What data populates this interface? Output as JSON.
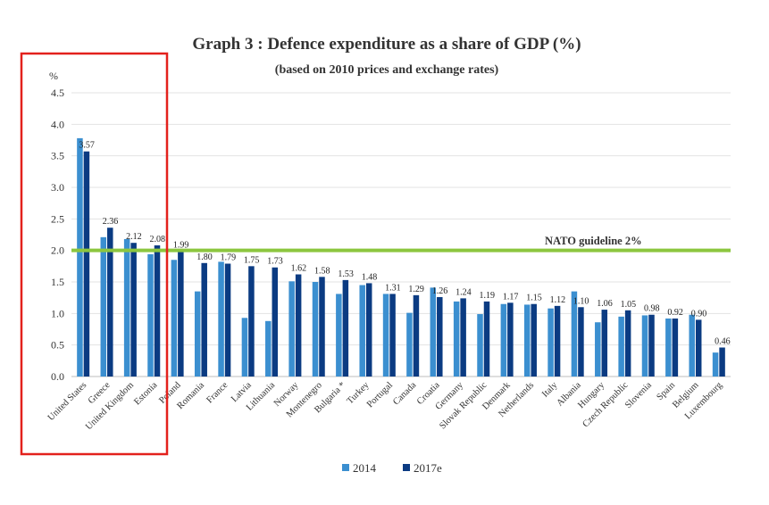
{
  "chart_data": {
    "type": "bar",
    "title": "Graph 3 : Defence expenditure as a share of GDP (%)",
    "subtitle": "(based on 2010 prices and exchange rates)",
    "ylabel": "%",
    "ylim": [
      0,
      4.5
    ],
    "yticks": [
      "0.0",
      "0.5",
      "1.0",
      "1.5",
      "2.0",
      "2.5",
      "3.0",
      "3.5",
      "4.0",
      "4.5"
    ],
    "grid": true,
    "legend_position": "bottom",
    "categories": [
      "United States",
      "Greece",
      "United Kingdom",
      "Estonia",
      "Poland",
      "Romania",
      "France",
      "Latvia",
      "Lithuania",
      "Norway",
      "Montenegro",
      "Bulgaria *",
      "Turkey",
      "Portugal",
      "Canada",
      "Croatia",
      "Germany",
      "Slovak Republic",
      "Denmark",
      "Netherlands",
      "Italy",
      "Albania",
      "Hungary",
      "Czech Republic",
      "Slovenia",
      "Spain",
      "Belgium",
      "Luxembourg"
    ],
    "series": [
      {
        "name": "2014",
        "color": "#3b8fd0",
        "values": [
          3.78,
          2.21,
          2.18,
          1.94,
          1.85,
          1.35,
          1.82,
          0.93,
          0.88,
          1.51,
          1.5,
          1.31,
          1.45,
          1.31,
          1.01,
          1.41,
          1.19,
          0.99,
          1.15,
          1.14,
          1.08,
          1.35,
          0.86,
          0.95,
          0.97,
          0.92,
          0.98,
          0.38
        ]
      },
      {
        "name": "2017e",
        "color": "#0b3b82",
        "values": [
          3.57,
          2.36,
          2.12,
          2.08,
          1.99,
          1.8,
          1.79,
          1.75,
          1.73,
          1.62,
          1.58,
          1.53,
          1.48,
          1.31,
          1.29,
          1.26,
          1.24,
          1.19,
          1.17,
          1.15,
          1.12,
          1.1,
          1.06,
          1.05,
          0.98,
          0.92,
          0.9,
          0.46
        ]
      }
    ],
    "data_labels": [
      "3.57",
      "2.36",
      "2.12",
      "2.08",
      "1.99",
      "1.80",
      "1.79",
      "1.75",
      "1.73",
      "1.62",
      "1.58",
      "1.53",
      "1.48",
      "1.31",
      "1.29",
      "1.26",
      "1.24",
      "1.19",
      "1.17",
      "1.15",
      "1.12",
      "1.10",
      "1.06",
      "1.05",
      "0.98",
      "0.92",
      "0.90",
      "0.46"
    ],
    "reference_line": {
      "value": 2.0,
      "label": "NATO guideline 2%",
      "color": "#8cc63f"
    },
    "highlight_box": {
      "color": "#e3211c",
      "categories": [
        "United States",
        "Greece",
        "United Kingdom",
        "Estonia"
      ]
    }
  }
}
